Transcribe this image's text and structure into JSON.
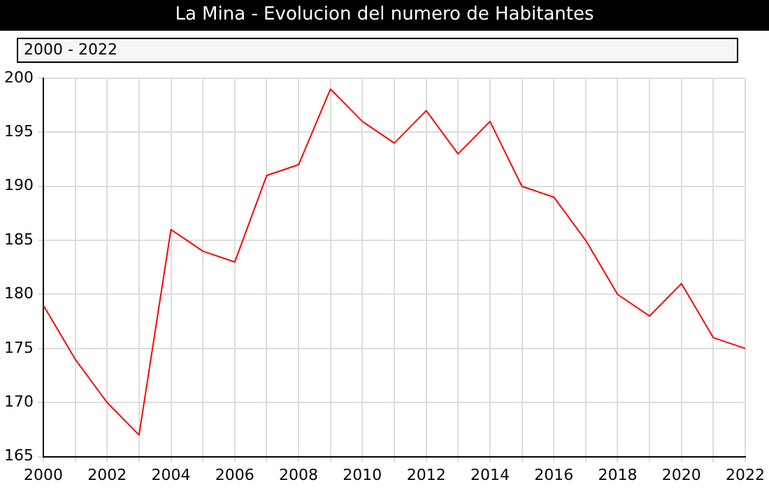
{
  "chart_data": {
    "type": "line",
    "title": "La Mina - Evolucion del numero de Habitantes",
    "annotations": [
      "2000 - 2022"
    ],
    "x": [
      2000,
      2001,
      2002,
      2003,
      2004,
      2005,
      2006,
      2007,
      2008,
      2009,
      2010,
      2011,
      2012,
      2013,
      2014,
      2015,
      2016,
      2017,
      2018,
      2019,
      2020,
      2021,
      2022
    ],
    "series": [
      {
        "color": "#ff0000",
        "values": [
          179,
          174,
          170,
          167,
          186,
          184,
          183,
          191,
          192,
          199,
          196,
          194,
          197,
          193,
          196,
          190,
          189,
          185,
          180,
          178,
          181,
          176,
          175
        ]
      }
    ],
    "xlim": [
      2000,
      2022
    ],
    "xticks": [
      2000,
      {
        "value": 2001,
        "label": null
      },
      2002,
      {
        "value": 2003,
        "label": null
      },
      2004,
      {
        "value": 2005,
        "label": null
      },
      2006,
      {
        "value": 2007,
        "label": null
      },
      2008,
      {
        "value": 2009,
        "label": null
      },
      2010,
      {
        "value": 2011,
        "label": null
      },
      2012,
      {
        "value": 2013,
        "label": null
      },
      2014,
      {
        "value": 2015,
        "label": null
      },
      2016,
      {
        "value": 2017,
        "label": null
      },
      2018,
      {
        "value": 2019,
        "label": null
      },
      2020,
      {
        "value": 2021,
        "label": null
      },
      2022
    ],
    "ylim": [
      165,
      200
    ],
    "yticks": [
      165,
      170,
      175,
      180,
      185,
      190,
      195,
      200
    ],
    "grid": true,
    "legend": false,
    "marker": "none",
    "line_style": "solid"
  }
}
